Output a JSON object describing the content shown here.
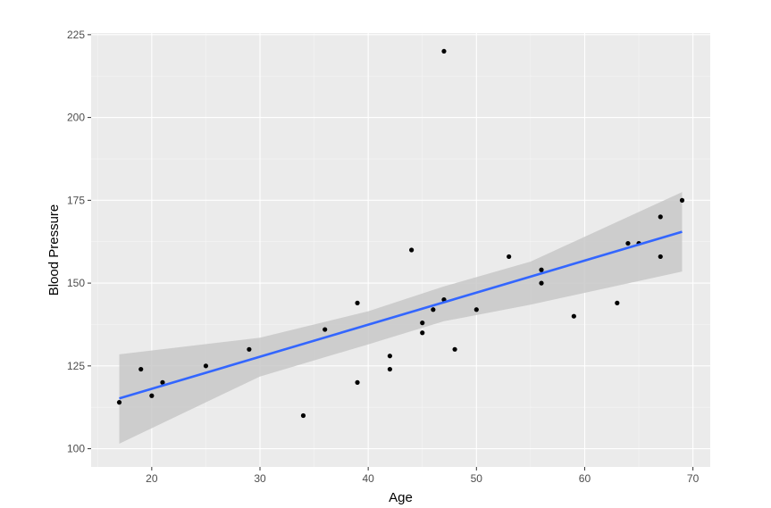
{
  "chart_data": {
    "type": "scatter",
    "title": "",
    "xlabel": "Age",
    "ylabel": "Blood Pressure",
    "xlim": [
      14.4,
      71.6
    ],
    "ylim": [
      94.5,
      225.5
    ],
    "x_ticks": [
      20,
      30,
      40,
      50,
      60,
      70
    ],
    "y_ticks": [
      100,
      125,
      150,
      175,
      200,
      225
    ],
    "grid": true,
    "legend": "none",
    "points": [
      {
        "x": 17,
        "y": 114
      },
      {
        "x": 19,
        "y": 124
      },
      {
        "x": 20,
        "y": 116
      },
      {
        "x": 21,
        "y": 120
      },
      {
        "x": 25,
        "y": 125
      },
      {
        "x": 29,
        "y": 130
      },
      {
        "x": 34,
        "y": 110
      },
      {
        "x": 36,
        "y": 136
      },
      {
        "x": 39,
        "y": 144
      },
      {
        "x": 39,
        "y": 120
      },
      {
        "x": 42,
        "y": 128
      },
      {
        "x": 42,
        "y": 124
      },
      {
        "x": 44,
        "y": 160
      },
      {
        "x": 45,
        "y": 138
      },
      {
        "x": 45,
        "y": 135
      },
      {
        "x": 46,
        "y": 142
      },
      {
        "x": 47,
        "y": 220
      },
      {
        "x": 47,
        "y": 145
      },
      {
        "x": 48,
        "y": 130
      },
      {
        "x": 50,
        "y": 142
      },
      {
        "x": 53,
        "y": 158
      },
      {
        "x": 56,
        "y": 154
      },
      {
        "x": 56,
        "y": 150
      },
      {
        "x": 59,
        "y": 140
      },
      {
        "x": 63,
        "y": 144
      },
      {
        "x": 64,
        "y": 162
      },
      {
        "x": 65,
        "y": 162
      },
      {
        "x": 67,
        "y": 170
      },
      {
        "x": 67,
        "y": 158
      },
      {
        "x": 69,
        "y": 175
      }
    ],
    "trend_line": {
      "method": "linear",
      "x": [
        17,
        69
      ],
      "y": [
        115.2,
        165.5
      ]
    },
    "confidence_band": {
      "x": [
        17,
        30,
        40,
        47,
        55,
        69
      ],
      "lower": [
        101.5,
        121.8,
        131.5,
        138.5,
        143.5,
        153.5
      ],
      "upper": [
        128.5,
        133.5,
        141.5,
        149.0,
        156.5,
        177.5
      ]
    },
    "colors": {
      "panel_background": "#ebebeb",
      "grid_major": "#ffffff",
      "grid_minor": "#f5f5f5",
      "points": "#000000",
      "trend_line": "#3366ff",
      "confidence_band": "#c8c8c8"
    }
  }
}
